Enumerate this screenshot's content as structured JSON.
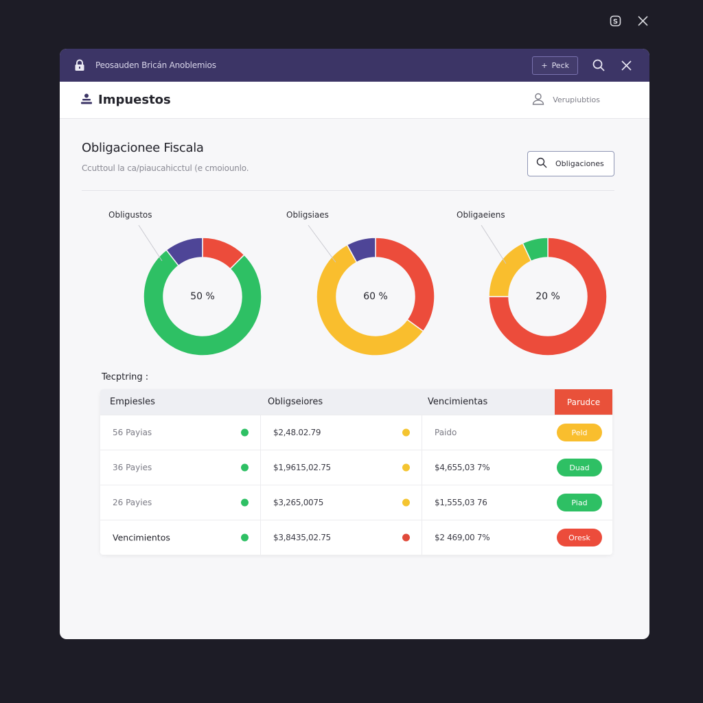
{
  "os_controls": {
    "app_icon": "s-badge-icon",
    "close_icon": "close-icon"
  },
  "titlebar": {
    "title": "Peosauden Bricán  Anoblemios",
    "button_label": "Peck",
    "button_icon": "plus-icon",
    "search_icon": "search-icon",
    "close_icon": "close-icon",
    "color": "#3c3566"
  },
  "header": {
    "app_title": "Impuestos",
    "app_icon": "stack-icon",
    "user_label": "Verupiubtios",
    "user_icon": "user-icon"
  },
  "section": {
    "title": "Obligacionee Fiscala",
    "subtitle": "Ccuttoul la ca/piaucahicctul  (e cmoiounlo.",
    "search_button_label": "Obligaciones"
  },
  "chart_data": [
    {
      "type": "pie",
      "title": "Obligustos",
      "center_label": "50 %",
      "donut": true,
      "slices": [
        {
          "label": "red",
          "value": 12.5,
          "color": "#ec4c3b"
        },
        {
          "label": "green",
          "value": 77,
          "color": "#2ec064"
        },
        {
          "label": "purple",
          "value": 10.5,
          "color": "#4e4597"
        }
      ]
    },
    {
      "type": "pie",
      "title": "Obligsiaes",
      "center_label": "60 %",
      "donut": true,
      "slices": [
        {
          "label": "red",
          "value": 35,
          "color": "#ec4c3b"
        },
        {
          "label": "yellow",
          "value": 57,
          "color": "#f9be2e"
        },
        {
          "label": "purple",
          "value": 8,
          "color": "#4e4597"
        }
      ]
    },
    {
      "type": "pie",
      "title": "Obligaeiens",
      "center_label": "20 %",
      "donut": true,
      "slices": [
        {
          "label": "red",
          "value": 75,
          "color": "#ec4c3b"
        },
        {
          "label": "yellow",
          "value": 18,
          "color": "#f9be2e"
        },
        {
          "label": "green",
          "value": 7,
          "color": "#2ec064"
        }
      ]
    }
  ],
  "table": {
    "caption": "Tecptring :",
    "headers": [
      "Empiesles",
      "Obligseiores",
      "Vencimientas"
    ],
    "action_header": "Parudce",
    "rows": [
      {
        "col1": "56 Payias",
        "dot1": "#2ec064",
        "col2": "$2,48.02.79",
        "dot2": "#f4c430",
        "col3": "Paido",
        "status": "Peld",
        "status_color": "#f9be2e"
      },
      {
        "col1": "36 Payies",
        "dot1": "#2ec064",
        "col2": "$1,9615,02.75",
        "dot2": "#f4c430",
        "col3": "$4,655,03 7%",
        "status": "Duad",
        "status_color": "#2ec064"
      },
      {
        "col1": "26 Payies",
        "dot1": "#2ec064",
        "col2": "$3,265,0075",
        "dot2": "#f4c430",
        "col3": "$1,555,03 76",
        "status": "Piad",
        "status_color": "#2ec064"
      },
      {
        "col1": "Vencimientos",
        "dot1": "#2ec064",
        "col2": "$3,8435,02.75",
        "dot2": "#e04a3a",
        "col3": "$2 469,00 7%",
        "status": "Oresk",
        "status_color": "#ec4c3b"
      }
    ]
  }
}
